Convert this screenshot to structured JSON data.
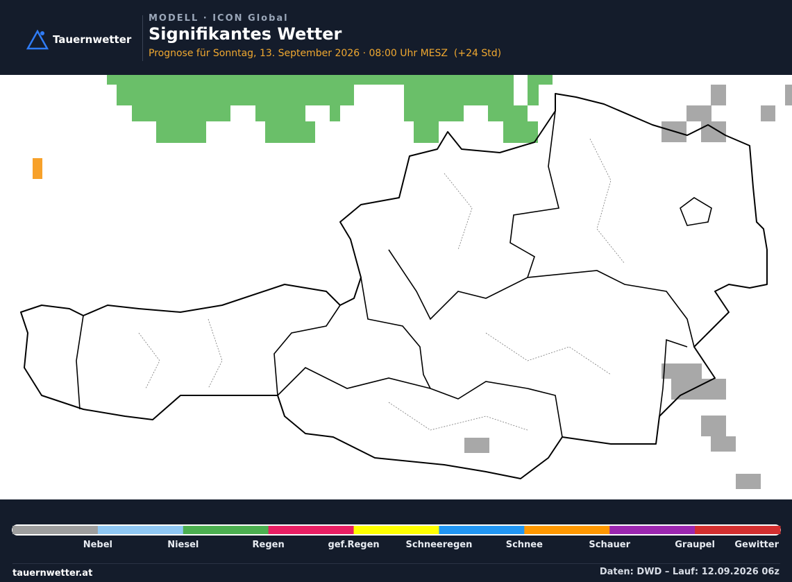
{
  "header": {
    "logo": "Tauernwetter",
    "kicker": "MODELL · ICON Global",
    "title": "Signifikantes Wetter",
    "subtitle": "Prognose für Sonntag, 13. September 2026 · 08:00 Uhr MESZ  (+24 Std)"
  },
  "legend": {
    "items": [
      {
        "label": "Nebel",
        "color": "#9e9e9e"
      },
      {
        "label": "Niesel",
        "color": "#90c8f4"
      },
      {
        "label": "Regen",
        "color": "#4caf50"
      },
      {
        "label": "gef.Regen",
        "color": "#e91e63"
      },
      {
        "label": "Schneeregen",
        "color": "#ffff00"
      },
      {
        "label": "Schnee",
        "color": "#2196f3"
      },
      {
        "label": "Schauer",
        "color": "#ff9800"
      },
      {
        "label": "Graupel",
        "color": "#9c27b0"
      },
      {
        "label": "Gewitter",
        "color": "#d32f2f"
      }
    ]
  },
  "footer": {
    "site": "tauernwetter.at",
    "source": "Daten: DWD – Lauf: 12.09.2026 06z"
  }
}
